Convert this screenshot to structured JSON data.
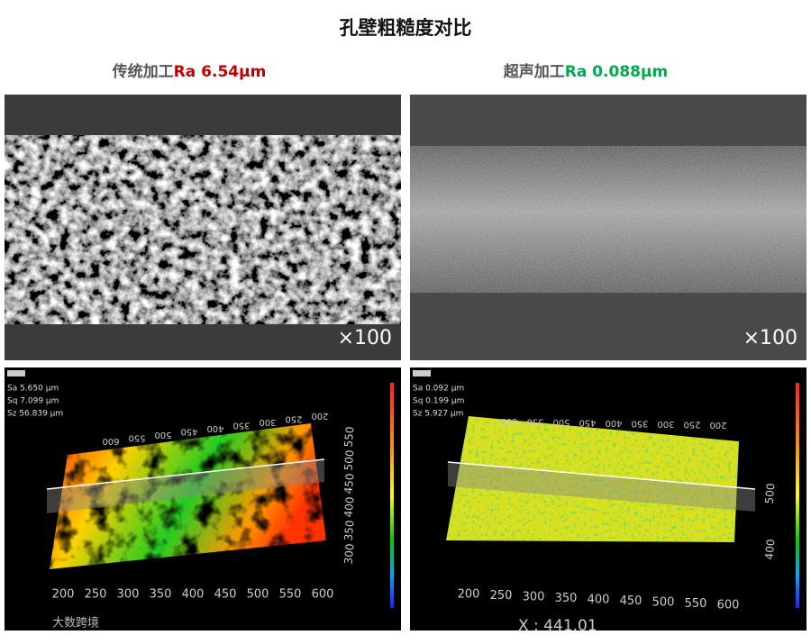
{
  "title": "孔壁粗糙度对比",
  "panels": [
    {
      "method": "传统加工",
      "ra": "Ra 6.54μm",
      "magnification": "×100",
      "stats": [
        "Sa 5.650 μm",
        "Sq 7.099 μm",
        "Sz 56.839 μm"
      ],
      "x_axis": [
        "200",
        "250",
        "300",
        "350",
        "400",
        "450",
        "500",
        "550",
        "600"
      ],
      "top_axis": [
        "600",
        "550",
        "500",
        "450",
        "400",
        "350",
        "300",
        "250",
        "200"
      ],
      "side_axis": [
        "550",
        "500",
        "450",
        "400",
        "350",
        "300"
      ]
    },
    {
      "method": "超声加工",
      "ra": "Ra 0.088μm",
      "magnification": "×100",
      "stats": [
        "Sa 0.092 μm",
        "Sq 0.199 μm",
        "Sz 5.927 μm"
      ],
      "x_axis": [
        "200",
        "250",
        "300",
        "350",
        "400",
        "450",
        "500",
        "550",
        "600"
      ],
      "top_axis": [
        "600",
        "550",
        "500",
        "450",
        "400",
        "350",
        "300",
        "250",
        "200"
      ],
      "side_axis": [
        "500",
        "400"
      ],
      "coordinate": "X : 441.01"
    }
  ],
  "watermark": "大数跨境"
}
